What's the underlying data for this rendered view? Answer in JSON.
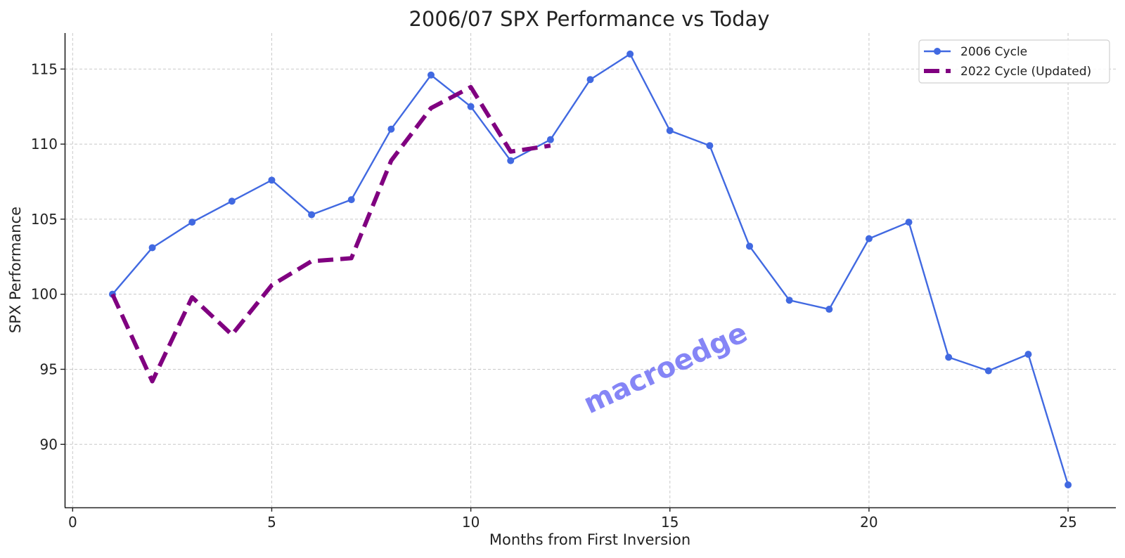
{
  "chart_data": {
    "type": "line",
    "title": "2006/07 SPX Performance vs Today",
    "xlabel": "Months from First Inversion",
    "ylabel": "SPX Performance",
    "xlim": [
      -0.2,
      26.2
    ],
    "ylim": [
      85.8,
      117.4
    ],
    "xticks": [
      0,
      5,
      10,
      15,
      20,
      25
    ],
    "yticks": [
      90,
      95,
      100,
      105,
      110,
      115
    ],
    "grid": true,
    "legend_position": "top-right",
    "series": [
      {
        "name": "2006 Cycle",
        "style": "solid-markers",
        "color": "#4169E1",
        "x": [
          1,
          2,
          3,
          4,
          5,
          6,
          7,
          8,
          9,
          10,
          11,
          12,
          13,
          14,
          15,
          16,
          17,
          18,
          19,
          20,
          21,
          22,
          23,
          24,
          25
        ],
        "values": [
          100.0,
          103.1,
          104.8,
          106.2,
          107.6,
          105.3,
          106.3,
          111.0,
          114.6,
          112.5,
          108.9,
          110.3,
          114.3,
          116.0,
          110.9,
          109.9,
          103.2,
          99.6,
          99.0,
          103.7,
          104.8,
          95.8,
          94.9,
          96.0,
          87.3
        ]
      },
      {
        "name": "2022 Cycle (Updated)",
        "style": "dashed",
        "color": "#800080",
        "x": [
          1,
          2,
          3,
          4,
          5,
          6,
          7,
          8,
          9,
          10,
          11,
          12
        ],
        "values": [
          100.0,
          94.2,
          99.8,
          97.3,
          100.6,
          102.2,
          102.4,
          108.9,
          112.4,
          113.8,
          109.5,
          109.9
        ]
      }
    ],
    "watermark": "macroedge"
  }
}
